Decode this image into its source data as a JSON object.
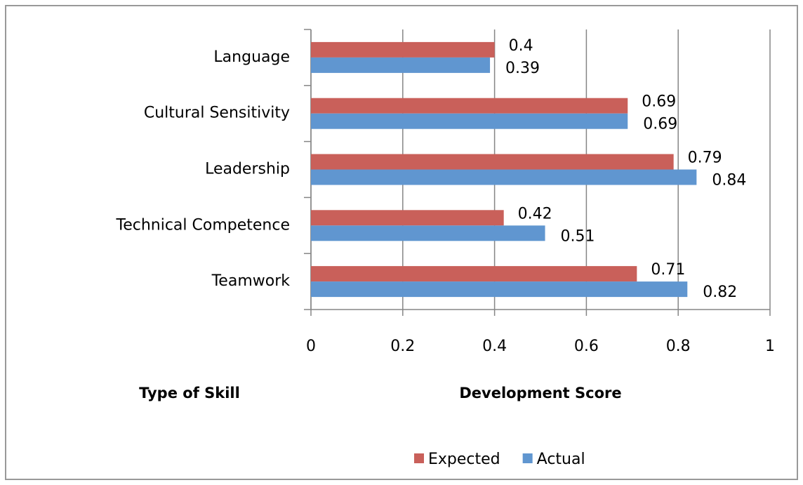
{
  "chart_data": {
    "type": "barh",
    "x_label": "Development Score",
    "y_label": "Type of Skill",
    "categories": [
      "Language",
      "Cultural Sensitivity",
      "Leadership",
      "Technical Competence",
      "Teamwork"
    ],
    "series": [
      {
        "name": "Expected",
        "color": "#c9605a",
        "values": [
          0.4,
          0.69,
          0.79,
          0.42,
          0.71
        ]
      },
      {
        "name": "Actual",
        "color": "#6096d0",
        "values": [
          0.39,
          0.69,
          0.84,
          0.51,
          0.82
        ]
      }
    ],
    "xlim": [
      0,
      1
    ],
    "xticks": [
      0,
      0.2,
      0.4,
      0.6,
      0.8,
      1
    ],
    "grid": true,
    "legend": "bottom"
  }
}
